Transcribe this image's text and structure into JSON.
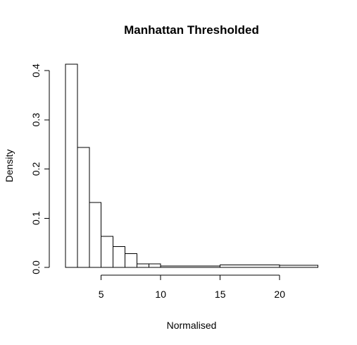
{
  "chart_data": {
    "type": "bar",
    "title": "Manhattan Thresholded",
    "xlabel": "Normalised",
    "ylabel": "Density",
    "xlim": [
      2,
      23.2
    ],
    "ylim": [
      0,
      0.42
    ],
    "x_ticks": [
      5,
      10,
      15,
      20
    ],
    "x_tick_labels": [
      "5",
      "10",
      "15",
      "20"
    ],
    "y_ticks": [
      0.0,
      0.1,
      0.2,
      0.3,
      0.4
    ],
    "y_tick_labels": [
      "0.0",
      "0.1",
      "0.2",
      "0.3",
      "0.4"
    ],
    "grid": false,
    "bins": [
      {
        "x0": 2,
        "x1": 3,
        "density": 0.413
      },
      {
        "x0": 3,
        "x1": 4,
        "density": 0.244
      },
      {
        "x0": 4,
        "x1": 5,
        "density": 0.132
      },
      {
        "x0": 5,
        "x1": 6,
        "density": 0.063
      },
      {
        "x0": 6,
        "x1": 7,
        "density": 0.042
      },
      {
        "x0": 7,
        "x1": 8,
        "density": 0.028
      },
      {
        "x0": 8,
        "x1": 9,
        "density": 0.007
      },
      {
        "x0": 9,
        "x1": 10,
        "density": 0.007
      },
      {
        "x0": 10,
        "x1": 15,
        "density": 0.003
      },
      {
        "x0": 15,
        "x1": 20,
        "density": 0.005
      },
      {
        "x0": 20,
        "x1": 23.2,
        "density": 0.004
      }
    ]
  }
}
